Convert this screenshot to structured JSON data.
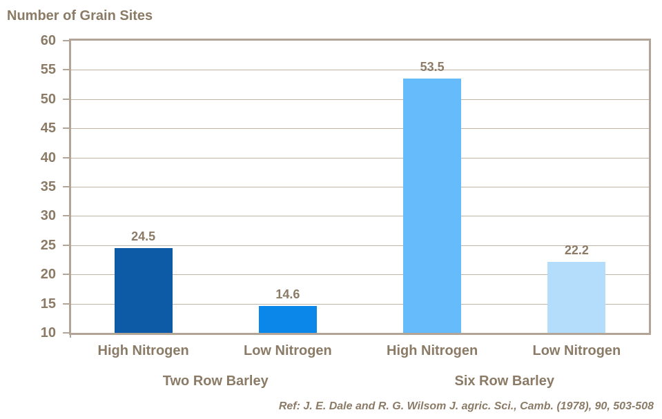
{
  "chart_data": {
    "type": "bar",
    "title": "Number of Grain Sites",
    "categories": [
      "High Nitrogen",
      "Low Nitrogen",
      "High Nitrogen",
      "Low Nitrogen"
    ],
    "group_labels": [
      {
        "label": "Two Row Barley",
        "spans": [
          0,
          1
        ]
      },
      {
        "label": "Six Row Barley",
        "spans": [
          2,
          3
        ]
      }
    ],
    "values": [
      24.5,
      14.6,
      53.5,
      22.2
    ],
    "value_labels": [
      "24.5",
      "14.6",
      "53.5",
      "22.2"
    ],
    "bar_colors": [
      "#0d5ba6",
      "#0b87e9",
      "#66bbfb",
      "#b4ddfb"
    ],
    "ylim": [
      10,
      60
    ],
    "yticks": [
      10,
      15,
      20,
      25,
      30,
      35,
      40,
      45,
      50,
      55,
      60
    ],
    "grid": true,
    "legend": "none",
    "xlabel": "",
    "ylabel": "Number of Grain Sites"
  },
  "footer": {
    "reference": "Ref: J. E. Dale and R. G. Wilsom J. agric. Sci., Camb. (1978), 90, 503-508"
  },
  "colors": {
    "text": "#8b7b66",
    "axis": "#b2a497",
    "gridline": "#bfb3a4",
    "background": "#ffffff"
  }
}
